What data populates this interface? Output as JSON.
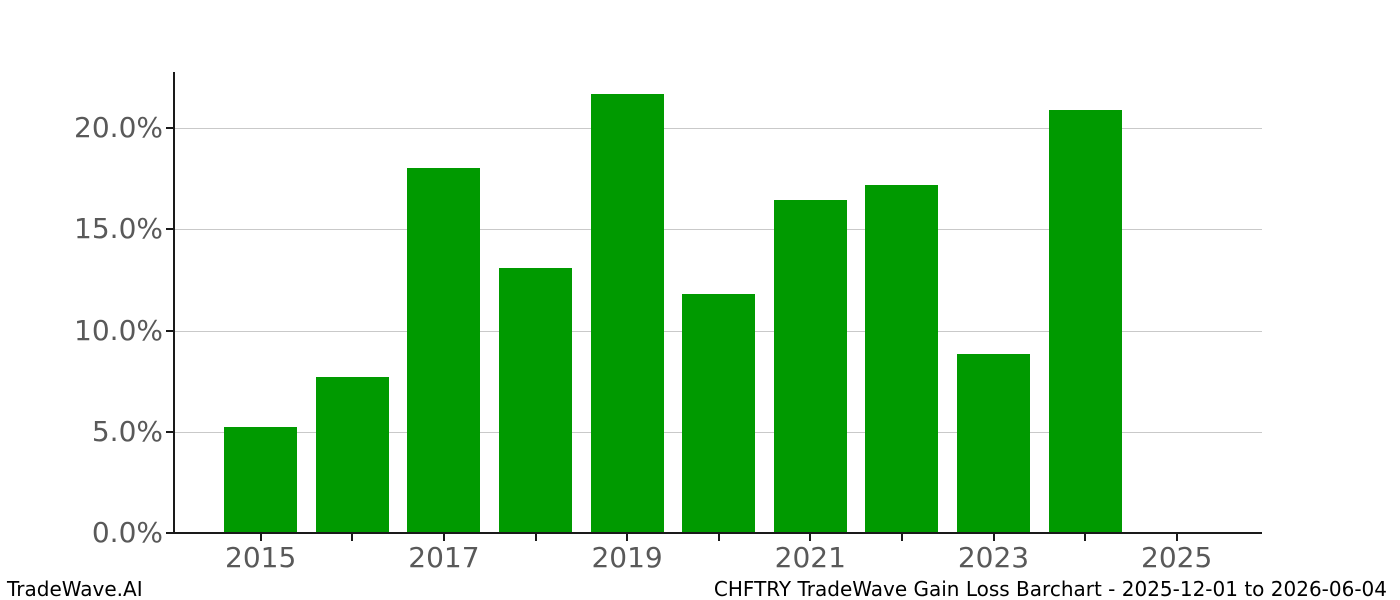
{
  "chart_data": {
    "type": "bar",
    "title": "",
    "xlabel": "",
    "ylabel": "",
    "categories": [
      2015,
      2016,
      2017,
      2018,
      2019,
      2020,
      2021,
      2022,
      2023,
      2024
    ],
    "values": [
      5.25,
      7.7,
      18.0,
      13.1,
      21.7,
      11.8,
      16.45,
      17.2,
      8.85,
      20.9
    ],
    "unit": "%",
    "ylim": [
      0,
      22.75
    ],
    "yticks": [
      {
        "value": 0,
        "label": "0.0%"
      },
      {
        "value": 5,
        "label": "5.0%"
      },
      {
        "value": 10,
        "label": "10.0%"
      },
      {
        "value": 15,
        "label": "15.0%"
      },
      {
        "value": 20,
        "label": "20.0%"
      }
    ],
    "xticks": [
      {
        "value": 2015,
        "label": "2015"
      },
      {
        "value": 2016,
        "label": ""
      },
      {
        "value": 2017,
        "label": "2017"
      },
      {
        "value": 2018,
        "label": ""
      },
      {
        "value": 2019,
        "label": "2019"
      },
      {
        "value": 2020,
        "label": ""
      },
      {
        "value": 2021,
        "label": "2021"
      },
      {
        "value": 2022,
        "label": ""
      },
      {
        "value": 2023,
        "label": "2023"
      },
      {
        "value": 2024,
        "label": ""
      },
      {
        "value": 2025,
        "label": "2025"
      }
    ],
    "grid": "horizontal",
    "legend": "none",
    "colors": {
      "bar": "#009a00",
      "grid": "#c9c9c9",
      "tick_label": "#595959",
      "spine": "#1a1a1a",
      "background": "#ffffff"
    }
  },
  "footer": {
    "left": "TradeWave.AI",
    "right": "CHFTRY TradeWave Gain Loss Barchart - 2025-12-01 to 2026-06-04"
  }
}
